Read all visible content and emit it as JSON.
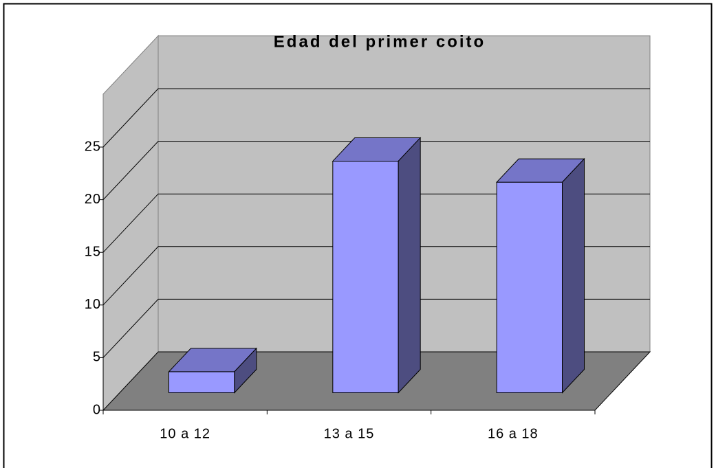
{
  "chart_data": {
    "type": "bar3d",
    "title": "Edad del primer coito",
    "categories": [
      "10 a 12",
      "13 a 15",
      "16 a 18"
    ],
    "values": [
      2,
      22,
      20
    ],
    "color": "#9999ff",
    "ylim": [
      0,
      25
    ],
    "yticks": [
      0,
      5,
      10,
      15,
      20,
      25
    ],
    "grid": true
  }
}
